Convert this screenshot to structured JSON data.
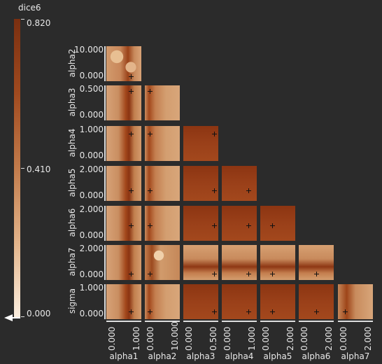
{
  "colorbar": {
    "title": "dice6",
    "max_label": "0.820",
    "mid_label": "0.410",
    "min_label": "0.000",
    "colors": [
      "#7a2f10",
      "#a04a1f",
      "#c27b4b",
      "#e3b48a",
      "#fbeedf"
    ]
  },
  "rows": [
    {
      "label": "alpha2",
      "tick_top": "10.000",
      "tick_bottom": "0.000"
    },
    {
      "label": "alpha3",
      "tick_top": "0.500",
      "tick_bottom": "0.000"
    },
    {
      "label": "alpha4",
      "tick_top": "1.000",
      "tick_bottom": "0.000"
    },
    {
      "label": "alpha5",
      "tick_top": "2.000",
      "tick_bottom": "0.000"
    },
    {
      "label": "alpha6",
      "tick_top": "2.000",
      "tick_bottom": "0.000"
    },
    {
      "label": "alpha7",
      "tick_top": "2.000",
      "tick_bottom": "0.000"
    },
    {
      "label": "sigma",
      "tick_top": "1.000",
      "tick_bottom": "0.000"
    }
  ],
  "columns": [
    {
      "label": "alpha1",
      "tick_left": "0.000",
      "tick_right": "1.000"
    },
    {
      "label": "alpha2",
      "tick_left": "0.000",
      "tick_right": "10.000"
    },
    {
      "label": "alpha3",
      "tick_left": "0.000",
      "tick_right": "0.500"
    },
    {
      "label": "alpha4",
      "tick_left": "0.000",
      "tick_right": "1.000"
    },
    {
      "label": "alpha5",
      "tick_left": "0.000",
      "tick_right": "2.000"
    },
    {
      "label": "alpha6",
      "tick_left": "0.000",
      "tick_right": "2.000"
    },
    {
      "label": "alpha7",
      "tick_left": "0.000",
      "tick_right": "2.000"
    }
  ]
}
